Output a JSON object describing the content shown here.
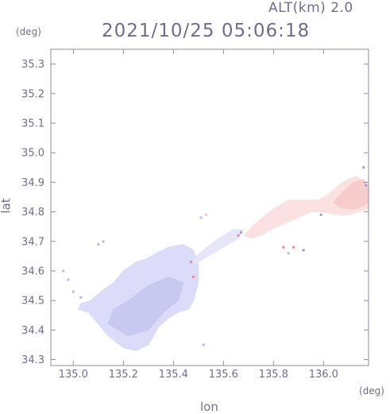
{
  "header": {
    "alt_label": "ALT(km) 2.0",
    "timestamp": "2021/10/25 05:06:18"
  },
  "chart_data": {
    "type": "heatmap",
    "title": "2021/10/25 05:06:18",
    "subtitle": "ALT(km) 2.0",
    "xlabel": "lon",
    "ylabel": "lat",
    "x_unit": "(deg)",
    "y_unit": "(deg)",
    "xlim": [
      134.91,
      136.18
    ],
    "ylim": [
      34.28,
      35.35
    ],
    "x_ticks": [
      135.0,
      135.2,
      135.4,
      135.6,
      135.8,
      136.0
    ],
    "x_tick_labels": [
      "135.0",
      "135.2",
      "135.4",
      "135.6",
      "135.8",
      "136.0"
    ],
    "y_ticks": [
      34.3,
      34.4,
      34.5,
      34.6,
      34.7,
      34.8,
      34.9,
      35.0,
      35.1,
      35.2,
      35.3
    ],
    "y_tick_labels": [
      "34.3",
      "34.4",
      "34.5",
      "34.6",
      "34.7",
      "34.8",
      "34.9",
      "35.0",
      "35.1",
      "35.2",
      "35.3"
    ],
    "grid": false,
    "regions": [
      {
        "name": "osaka-bay-negative",
        "color": "#dcdcfa",
        "points": [
          [
            135.02,
            34.47
          ],
          [
            135.06,
            34.46
          ],
          [
            135.09,
            34.43
          ],
          [
            135.14,
            34.38
          ],
          [
            135.2,
            34.34
          ],
          [
            135.25,
            34.33
          ],
          [
            135.3,
            34.35
          ],
          [
            135.34,
            34.41
          ],
          [
            135.38,
            34.44
          ],
          [
            135.42,
            34.46
          ],
          [
            135.46,
            34.47
          ],
          [
            135.48,
            34.5
          ],
          [
            135.5,
            34.56
          ],
          [
            135.5,
            34.62
          ],
          [
            135.48,
            34.67
          ],
          [
            135.44,
            34.69
          ],
          [
            135.38,
            34.68
          ],
          [
            135.33,
            34.66
          ],
          [
            135.29,
            34.64
          ],
          [
            135.25,
            34.63
          ],
          [
            135.2,
            34.6
          ],
          [
            135.16,
            34.56
          ],
          [
            135.11,
            34.53
          ],
          [
            135.07,
            34.5
          ],
          [
            135.03,
            34.49
          ]
        ]
      },
      {
        "name": "osaka-bay-darker-core",
        "color": "#c8c8f0",
        "points": [
          [
            135.14,
            34.42
          ],
          [
            135.22,
            34.38
          ],
          [
            135.3,
            34.4
          ],
          [
            135.36,
            34.46
          ],
          [
            135.42,
            34.5
          ],
          [
            135.44,
            34.56
          ],
          [
            135.38,
            34.58
          ],
          [
            135.3,
            34.55
          ],
          [
            135.22,
            34.5
          ],
          [
            135.16,
            34.47
          ]
        ]
      },
      {
        "name": "coastal-transition",
        "color": "#e6e6f8",
        "points": [
          [
            135.48,
            34.62
          ],
          [
            135.54,
            34.65
          ],
          [
            135.6,
            34.68
          ],
          [
            135.66,
            34.71
          ],
          [
            135.68,
            34.74
          ],
          [
            135.64,
            34.74
          ],
          [
            135.58,
            34.71
          ],
          [
            135.52,
            34.67
          ],
          [
            135.49,
            34.65
          ]
        ]
      },
      {
        "name": "lake-biwa-south-positive",
        "color": "#fbe1e1",
        "points": [
          [
            135.68,
            34.72
          ],
          [
            135.74,
            34.77
          ],
          [
            135.8,
            34.81
          ],
          [
            135.86,
            34.84
          ],
          [
            135.93,
            34.84
          ],
          [
            135.98,
            34.84
          ],
          [
            136.02,
            34.86
          ],
          [
            136.06,
            34.89
          ],
          [
            136.1,
            34.91
          ],
          [
            136.13,
            34.92
          ],
          [
            136.17,
            34.9
          ],
          [
            136.18,
            34.86
          ],
          [
            136.18,
            34.81
          ],
          [
            136.14,
            34.8
          ],
          [
            136.1,
            34.79
          ],
          [
            136.05,
            34.79
          ],
          [
            136.0,
            34.8
          ],
          [
            135.95,
            34.8
          ],
          [
            135.9,
            34.78
          ],
          [
            135.84,
            34.76
          ],
          [
            135.79,
            34.74
          ],
          [
            135.75,
            34.72
          ],
          [
            135.71,
            34.71
          ]
        ]
      },
      {
        "name": "eastern-strong-positive",
        "color": "#f6cccc",
        "points": [
          [
            136.04,
            34.83
          ],
          [
            136.08,
            34.87
          ],
          [
            136.12,
            34.9
          ],
          [
            136.16,
            34.91
          ],
          [
            136.18,
            34.88
          ],
          [
            136.18,
            34.83
          ],
          [
            136.13,
            34.81
          ],
          [
            136.08,
            34.81
          ]
        ]
      }
    ],
    "speckles": [
      {
        "lon": 135.1,
        "lat": 34.69,
        "color": "#b8b8ee"
      },
      {
        "lon": 135.12,
        "lat": 34.7,
        "color": "#b8b8ee"
      },
      {
        "lon": 134.96,
        "lat": 34.6,
        "color": "#b8b8ee"
      },
      {
        "lon": 134.98,
        "lat": 34.57,
        "color": "#b8b8ee"
      },
      {
        "lon": 135.0,
        "lat": 34.53,
        "color": "#b8b8ee"
      },
      {
        "lon": 135.03,
        "lat": 34.51,
        "color": "#b8b8ee"
      },
      {
        "lon": 135.51,
        "lat": 34.78,
        "color": "#b8b8ee"
      },
      {
        "lon": 135.53,
        "lat": 34.79,
        "color": "#f2c4c4"
      },
      {
        "lon": 135.47,
        "lat": 34.63,
        "color": "#e88a8a"
      },
      {
        "lon": 135.48,
        "lat": 34.58,
        "color": "#e88a8a"
      },
      {
        "lon": 135.66,
        "lat": 34.72,
        "color": "#e88a8a"
      },
      {
        "lon": 135.84,
        "lat": 34.68,
        "color": "#e88a8a"
      },
      {
        "lon": 135.86,
        "lat": 34.66,
        "color": "#b8b8ee"
      },
      {
        "lon": 135.88,
        "lat": 34.68,
        "color": "#e88a8a"
      },
      {
        "lon": 135.92,
        "lat": 34.67,
        "color": "#9a9ae6"
      },
      {
        "lon": 135.52,
        "lat": 34.35,
        "color": "#b8b8ee"
      },
      {
        "lon": 136.16,
        "lat": 34.95,
        "color": "#9a9ae6"
      },
      {
        "lon": 136.17,
        "lat": 34.89,
        "color": "#9a9ae6"
      },
      {
        "lon": 135.67,
        "lat": 34.73,
        "color": "#9a9ae6"
      },
      {
        "lon": 135.99,
        "lat": 34.79,
        "color": "#9a9ae6"
      }
    ]
  },
  "colors": {
    "frame": "#8c8ca0",
    "text": "#6e6e8c"
  }
}
